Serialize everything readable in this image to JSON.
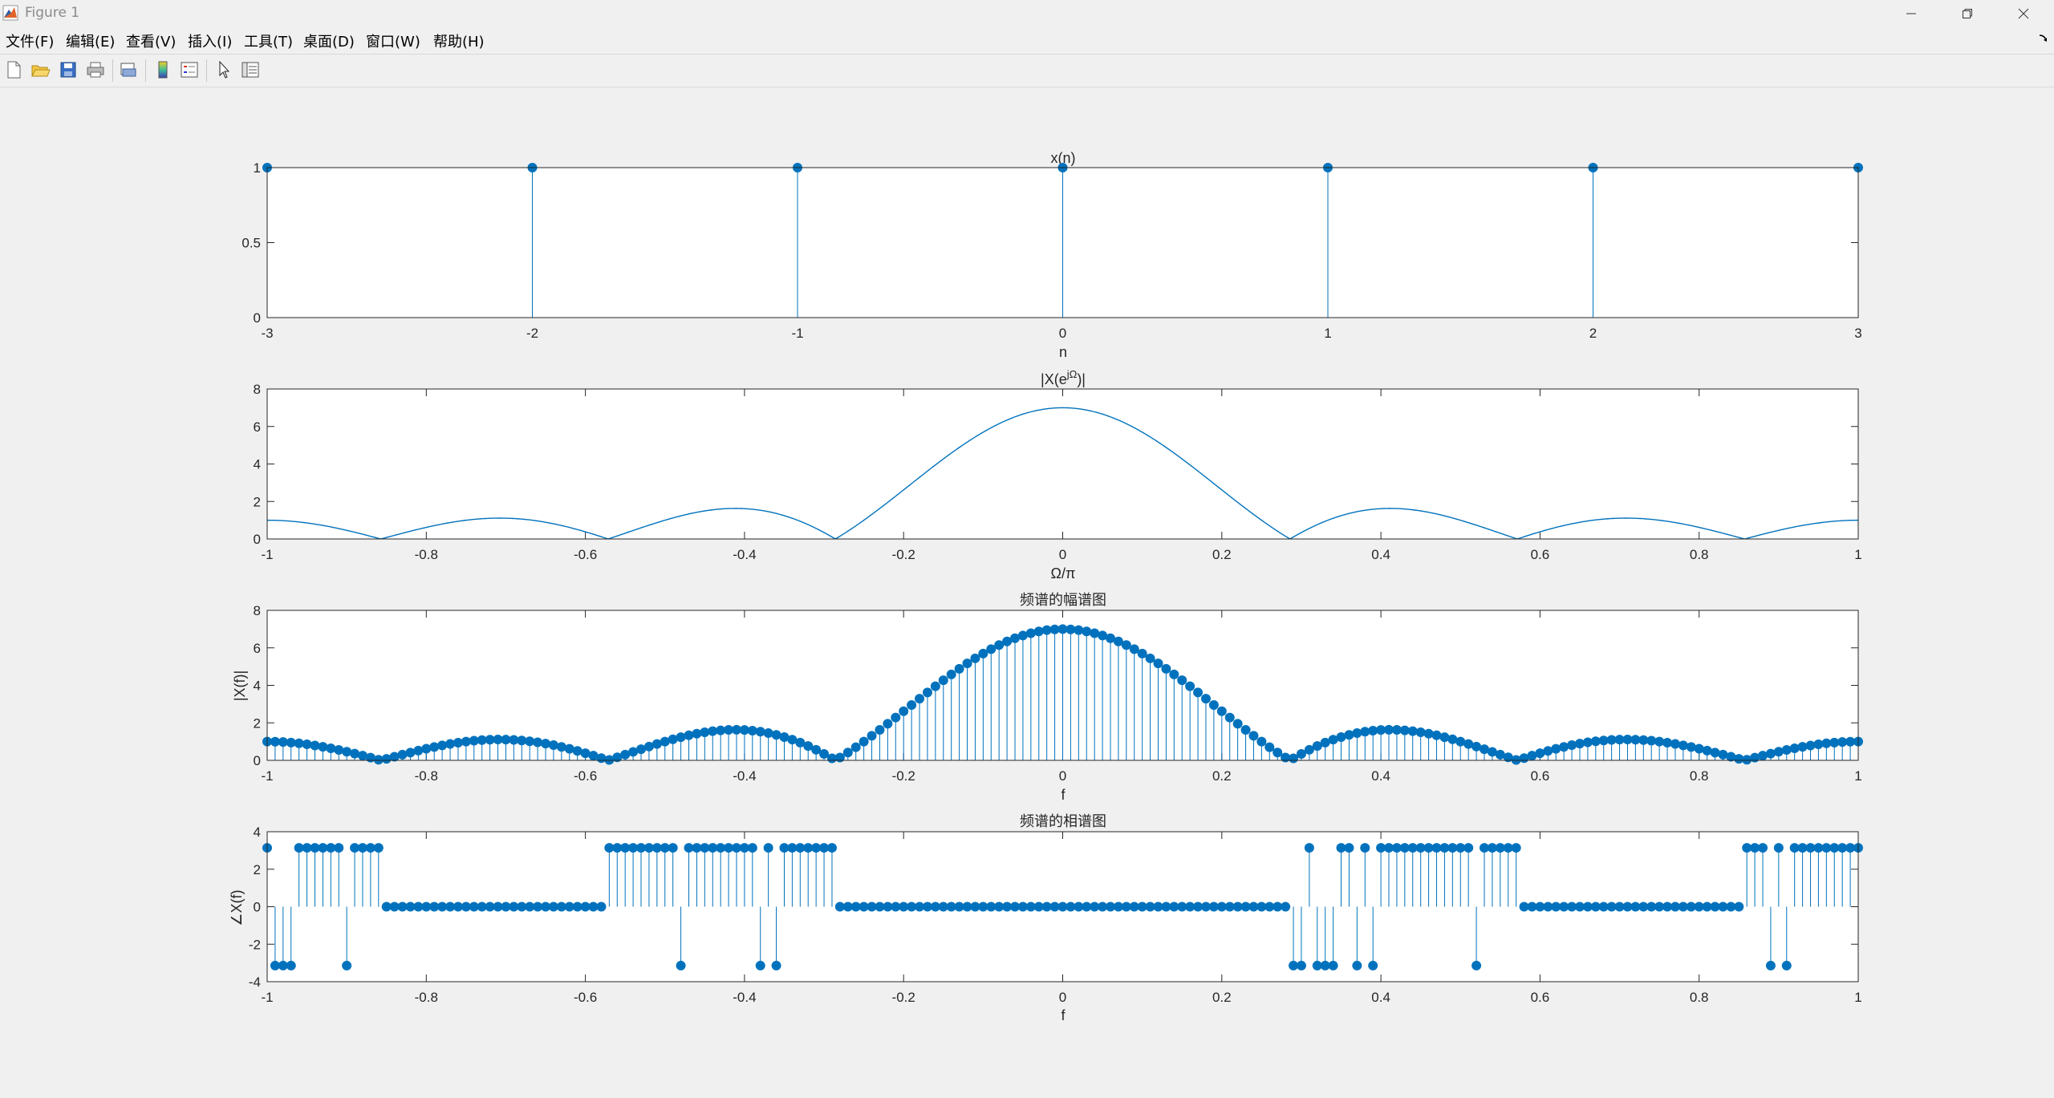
{
  "window": {
    "title": "Figure 1"
  },
  "menu": [
    "文件(F)",
    "编辑(E)",
    "查看(V)",
    "插入(I)",
    "工具(T)",
    "桌面(D)",
    "窗口(W)",
    "帮助(H)"
  ],
  "toolbar_icons": [
    "new-figure-icon",
    "open-file-icon",
    "save-icon",
    "print-icon",
    "print-preview-icon",
    "colorbar-icon",
    "legend-icon",
    "pointer-icon",
    "property-editor-icon"
  ],
  "colors": {
    "series": "#0072bd",
    "axes": "#262626",
    "figure_bg": "#f0f0f0",
    "axes_bg": "#ffffff"
  },
  "chart_data": [
    {
      "type": "stem",
      "title": "x(n)",
      "xlabel": "n",
      "ylabel": "",
      "xlim": [
        -3,
        3
      ],
      "ylim": [
        0,
        1
      ],
      "xticks": [
        "-3",
        "-2",
        "-1",
        "0",
        "1",
        "2",
        "3"
      ],
      "yticks": [
        "0",
        "0.5",
        "1"
      ],
      "x": [
        -3,
        -2,
        -1,
        0,
        1,
        2,
        3
      ],
      "values": [
        1,
        1,
        1,
        1,
        1,
        1,
        1
      ]
    },
    {
      "type": "line",
      "title": "|X(e^jΩ)|",
      "title_base": "|X(e",
      "title_sup": "jΩ",
      "title_end": ")|",
      "xlabel": "Ω/π",
      "ylabel": "",
      "xlim": [
        -1,
        1
      ],
      "ylim": [
        0,
        8
      ],
      "xticks": [
        "-1",
        "-0.8",
        "-0.6",
        "-0.4",
        "-0.2",
        "0",
        "0.2",
        "0.4",
        "0.6",
        "0.8",
        "1"
      ],
      "yticks": [
        "0",
        "2",
        "4",
        "6",
        "8"
      ],
      "function": "|sin(3.5πf)/sin(0.5πf)|",
      "x": [
        -1,
        -0.9,
        -0.857,
        -0.8,
        -0.714,
        -0.6,
        -0.571,
        -0.5,
        -0.408,
        -0.3,
        -0.286,
        -0.2,
        -0.1,
        0,
        0.1,
        0.2,
        0.286,
        0.3,
        0.408,
        0.5,
        0.571,
        0.6,
        0.714,
        0.8,
        0.857,
        0.9,
        1
      ],
      "values": [
        1.0,
        0.5,
        0.0,
        0.67,
        1.11,
        0.36,
        0.0,
        1.41,
        1.66,
        0.23,
        0.0,
        3.24,
        5.83,
        7.0,
        5.83,
        3.24,
        0.0,
        0.23,
        1.66,
        1.41,
        0.0,
        0.36,
        1.11,
        0.67,
        0.0,
        0.5,
        1.0
      ]
    },
    {
      "type": "stem",
      "title": "频谱的幅谱图",
      "xlabel": "f",
      "ylabel": "|X(f)|",
      "xlim": [
        -1,
        1
      ],
      "ylim": [
        0,
        8
      ],
      "xticks": [
        "-1",
        "-0.8",
        "-0.6",
        "-0.4",
        "-0.2",
        "0",
        "0.2",
        "0.4",
        "0.6",
        "0.8",
        "1"
      ],
      "yticks": [
        "0",
        "2",
        "4",
        "6",
        "8"
      ],
      "x_range": [
        -1,
        1
      ],
      "step": 0.01,
      "function": "|sin(3.5πf)/sin(0.5πf)|"
    },
    {
      "type": "stem",
      "title": "频谱的相谱图",
      "xlabel": "f",
      "ylabel": "∠X(f)",
      "xlim": [
        -1,
        1
      ],
      "ylim": [
        -4,
        4
      ],
      "xticks": [
        "-1",
        "-0.8",
        "-0.6",
        "-0.4",
        "-0.2",
        "0",
        "0.2",
        "0.4",
        "0.6",
        "0.8",
        "1"
      ],
      "yticks": [
        "-4",
        "-2",
        "0",
        "2",
        "4"
      ],
      "x_range": [
        -1,
        1
      ],
      "step": 0.01,
      "value_levels": [
        -3.1416,
        0,
        3.1416
      ],
      "segments": [
        {
          "from": -1.0,
          "to": -0.86,
          "value": 3.1416,
          "except_neg": [
            -0.99,
            -0.98,
            -0.97,
            -0.9
          ]
        },
        {
          "from": -0.85,
          "to": -0.58,
          "value": 0
        },
        {
          "from": -0.57,
          "to": -0.29,
          "value": 3.1416,
          "except_neg": [
            -0.48,
            -0.38,
            -0.36
          ]
        },
        {
          "from": -0.28,
          "to": 0.28,
          "value": 0
        },
        {
          "from": 0.29,
          "to": 0.57,
          "value": 3.1416,
          "except_neg": [
            0.29,
            0.3,
            0.32,
            0.33,
            0.34,
            0.37,
            0.39,
            0.52
          ]
        },
        {
          "from": 0.58,
          "to": 0.85,
          "value": 0
        },
        {
          "from": 0.86,
          "to": 1.0,
          "value": 3.1416,
          "except_neg": [
            0.89,
            0.91
          ]
        }
      ]
    }
  ]
}
